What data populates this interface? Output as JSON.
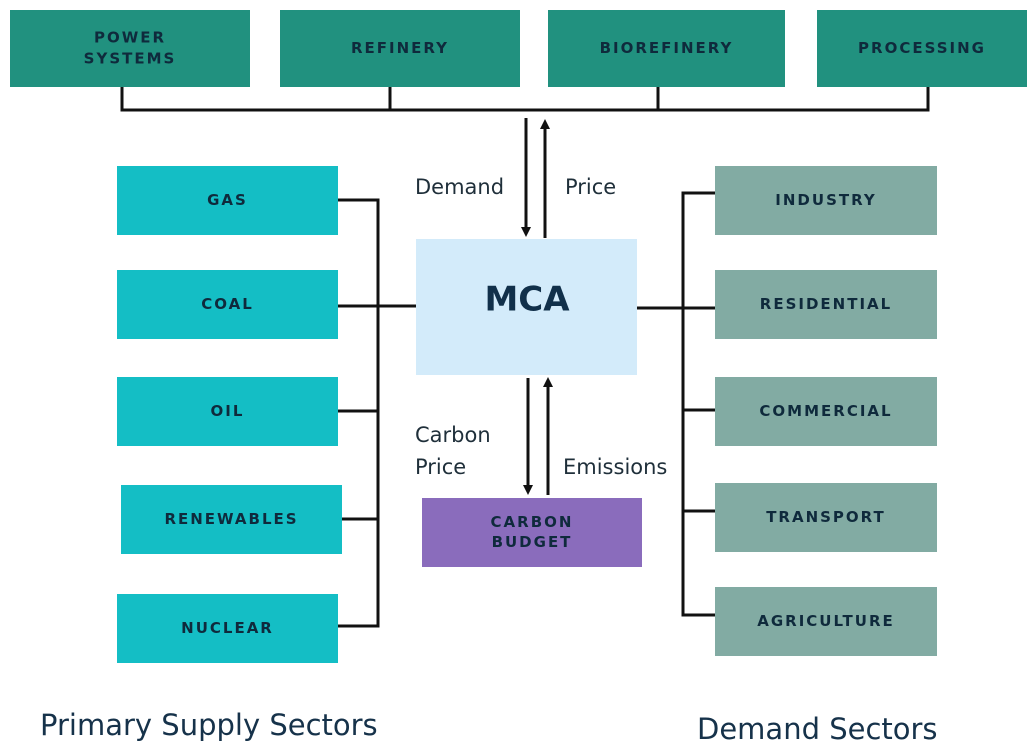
{
  "processes": [
    {
      "label": [
        "POWER",
        "SYSTEMS"
      ]
    },
    {
      "label": [
        "REFINERY"
      ]
    },
    {
      "label": [
        "BIOREFINERY"
      ]
    },
    {
      "label": [
        "PROCESSING"
      ]
    }
  ],
  "supply": [
    "GAS",
    "COAL",
    "OIL",
    "RENEWABLES",
    "NUCLEAR"
  ],
  "demand": [
    "INDUSTRY",
    "RESIDENTIAL",
    "COMMERCIAL",
    "TRANSPORT",
    "AGRICULTURE"
  ],
  "center": "MCA",
  "budget": [
    "CARBON",
    "BUDGET"
  ],
  "flows": {
    "demand": "Demand",
    "price": "Price",
    "carbon_price": [
      "Carbon",
      "Price"
    ],
    "emissions": "Emissions"
  },
  "sections": {
    "supply": "Primary Supply Sectors",
    "demand": "Demand Sectors"
  }
}
